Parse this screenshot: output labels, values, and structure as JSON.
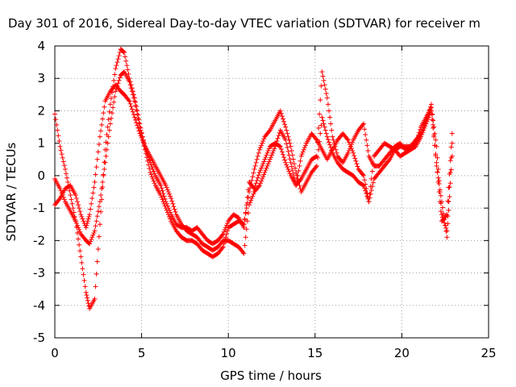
{
  "chart_data": {
    "type": "scatter",
    "title": "Day 301 of 2016, Sidereal Day-to-day VTEC variation (SDTVAR) for receiver m",
    "xlabel": "GPS time / hours",
    "ylabel": "SDTVAR / TECUs",
    "xlim": [
      0,
      25
    ],
    "ylim": [
      -5,
      4
    ],
    "x_ticks": [
      "0",
      "5",
      "10",
      "15",
      "20",
      "25"
    ],
    "y_ticks": [
      "-5",
      "-4",
      "-3",
      "-2",
      "-1",
      "0",
      "1",
      "2",
      "3",
      "4"
    ],
    "grid": true,
    "marker": "plus",
    "color": "#ff0000",
    "series": [
      {
        "x": [
          0.0,
          0.3,
          0.6,
          0.9,
          1.2,
          1.5,
          1.8,
          2.0,
          2.3,
          2.6,
          2.9,
          3.2,
          3.5,
          3.8,
          4.0,
          4.3,
          4.6,
          4.9,
          5.2,
          5.5,
          5.8,
          6.1,
          6.4,
          6.7,
          7.0,
          7.3,
          7.6,
          7.9,
          8.2,
          8.5,
          8.8,
          9.1,
          9.4,
          9.7,
          10.0,
          10.3,
          10.6,
          10.9,
          11.2,
          11.5,
          11.8,
          12.1,
          12.4,
          12.7,
          13.0,
          13.3,
          13.6,
          13.9,
          14.2,
          14.5,
          14.8,
          15.1,
          15.4,
          15.7,
          16.0,
          16.3,
          16.6,
          16.9,
          17.2,
          17.5,
          17.8,
          18.1,
          18.4,
          18.7,
          19.0,
          19.3,
          19.6,
          19.9,
          20.2,
          20.5,
          20.8,
          21.1,
          21.4,
          21.7,
          22.0,
          22.3,
          22.6,
          22.9
        ],
        "y": [
          -0.9,
          -0.7,
          -0.4,
          -0.3,
          -0.6,
          -1.2,
          -1.6,
          -1.2,
          -0.2,
          1.2,
          2.3,
          2.6,
          2.8,
          2.6,
          2.5,
          2.3,
          1.8,
          1.3,
          0.9,
          0.6,
          0.3,
          0.0,
          -0.3,
          -0.7,
          -1.2,
          -1.5,
          -1.7,
          -1.8,
          -1.9,
          -2.1,
          -2.2,
          -2.3,
          -2.2,
          -2.0,
          -2.0,
          -2.1,
          -2.2,
          -2.4,
          -0.9,
          -0.5,
          -0.3,
          0.1,
          0.5,
          0.9,
          1.4,
          1.1,
          0.4,
          -0.3,
          -0.1,
          0.2,
          0.5,
          0.6,
          3.2,
          2.4,
          1.2,
          0.6,
          0.4,
          0.7,
          1.1,
          1.4,
          1.6,
          0.6,
          0.3,
          0.3,
          0.5,
          0.7,
          0.9,
          1.0,
          0.8,
          0.9,
          1.0,
          1.5,
          1.8,
          2.1,
          0.9,
          -1.2,
          -1.7,
          1.0
        ]
      },
      {
        "x": [
          0.0,
          0.3,
          0.6,
          0.9,
          1.2,
          1.5,
          1.8,
          2.0,
          2.3,
          2.6,
          2.9,
          3.2,
          3.5,
          3.8,
          4.0,
          4.3,
          4.6,
          4.9,
          5.2,
          5.5,
          5.8,
          6.1,
          6.4,
          6.7,
          7.0,
          7.3,
          7.6,
          7.9,
          8.2,
          8.5,
          8.8,
          9.1,
          9.4,
          9.7,
          10.0,
          10.3,
          10.6,
          10.9,
          11.2,
          11.5,
          11.8,
          12.1,
          12.4,
          12.7,
          13.0,
          13.3,
          13.6,
          13.9,
          14.2,
          14.5,
          14.8,
          15.1,
          15.4,
          15.7,
          16.0,
          16.3,
          16.6,
          16.9,
          17.2,
          17.5,
          17.8,
          18.1,
          18.4,
          18.7,
          19.0,
          19.3,
          19.6,
          19.9,
          20.2,
          20.5,
          20.8,
          21.1,
          21.4,
          21.7,
          22.0,
          22.3,
          22.6,
          22.9
        ],
        "y": [
          1.9,
          0.9,
          0.2,
          -0.6,
          -1.4,
          -2.5,
          -3.6,
          -4.1,
          -3.8,
          -1.5,
          0.8,
          2.2,
          3.3,
          3.9,
          3.8,
          3.0,
          2.4,
          1.6,
          0.8,
          0.1,
          -0.3,
          -0.6,
          -1.0,
          -1.4,
          -1.7,
          -1.9,
          -2.0,
          -2.0,
          -2.1,
          -2.3,
          -2.4,
          -2.5,
          -2.4,
          -2.2,
          -1.6,
          -1.5,
          -1.4,
          -1.5,
          -0.5,
          0.2,
          0.8,
          1.2,
          1.4,
          1.7,
          2.0,
          1.5,
          0.9,
          0.1,
          -0.5,
          -0.2,
          0.1,
          0.3,
          1.8,
          1.2,
          0.7,
          0.4,
          0.2,
          0.1,
          0.0,
          -0.2,
          -0.3,
          -0.8,
          -0.1,
          0.1,
          0.3,
          0.5,
          0.8,
          0.9,
          0.9,
          0.9,
          1.1,
          1.3,
          1.7,
          2.2,
          0.3,
          -0.8,
          -1.9,
          0.6
        ]
      },
      {
        "x": [
          0.0,
          0.3,
          0.6,
          0.9,
          1.2,
          1.5,
          1.8,
          2.0,
          2.3,
          2.6,
          2.9,
          3.2,
          3.5,
          3.8,
          4.0,
          4.3,
          4.6,
          4.9,
          5.2,
          5.5,
          5.8,
          6.1,
          6.4,
          6.7,
          7.0,
          7.3,
          7.6,
          7.9,
          8.2,
          8.5,
          8.8,
          9.1,
          9.4,
          9.7,
          10.0,
          10.3,
          10.6,
          10.9,
          11.2,
          11.5,
          11.8,
          12.1,
          12.4,
          12.7,
          13.0,
          13.3,
          13.6,
          13.9,
          14.2,
          14.5,
          14.8,
          15.1,
          15.4,
          15.7,
          16.0,
          16.3,
          16.6,
          16.9,
          17.2,
          17.5,
          17.8,
          18.1,
          18.4,
          18.7,
          19.0,
          19.3,
          19.6,
          19.9,
          20.2,
          20.5,
          20.8,
          21.1,
          21.4,
          21.7,
          22.0,
          22.3,
          22.6,
          22.9
        ],
        "y": [
          -0.1,
          -0.4,
          -0.8,
          -1.1,
          -1.4,
          -1.8,
          -2.0,
          -2.1,
          -1.7,
          -0.8,
          0.4,
          1.6,
          2.6,
          3.1,
          3.2,
          2.9,
          2.3,
          1.5,
          0.9,
          0.4,
          0.0,
          -0.3,
          -0.8,
          -1.2,
          -1.5,
          -1.6,
          -1.6,
          -1.7,
          -1.6,
          -1.8,
          -2.0,
          -2.1,
          -2.0,
          -1.8,
          -1.4,
          -1.2,
          -1.3,
          -1.6,
          -0.2,
          -0.4,
          0.1,
          0.5,
          0.9,
          1.0,
          0.9,
          0.4,
          0.0,
          -0.3,
          0.6,
          1.0,
          1.3,
          1.1,
          0.8,
          0.5,
          0.8,
          1.1,
          1.3,
          1.1,
          0.7,
          0.2,
          0.0,
          -0.8,
          0.6,
          0.8,
          1.0,
          0.9,
          0.8,
          0.6,
          0.7,
          0.8,
          0.9,
          1.2,
          1.6,
          2.0,
          0.4,
          -1.4,
          -1.2,
          1.3
        ]
      }
    ]
  }
}
